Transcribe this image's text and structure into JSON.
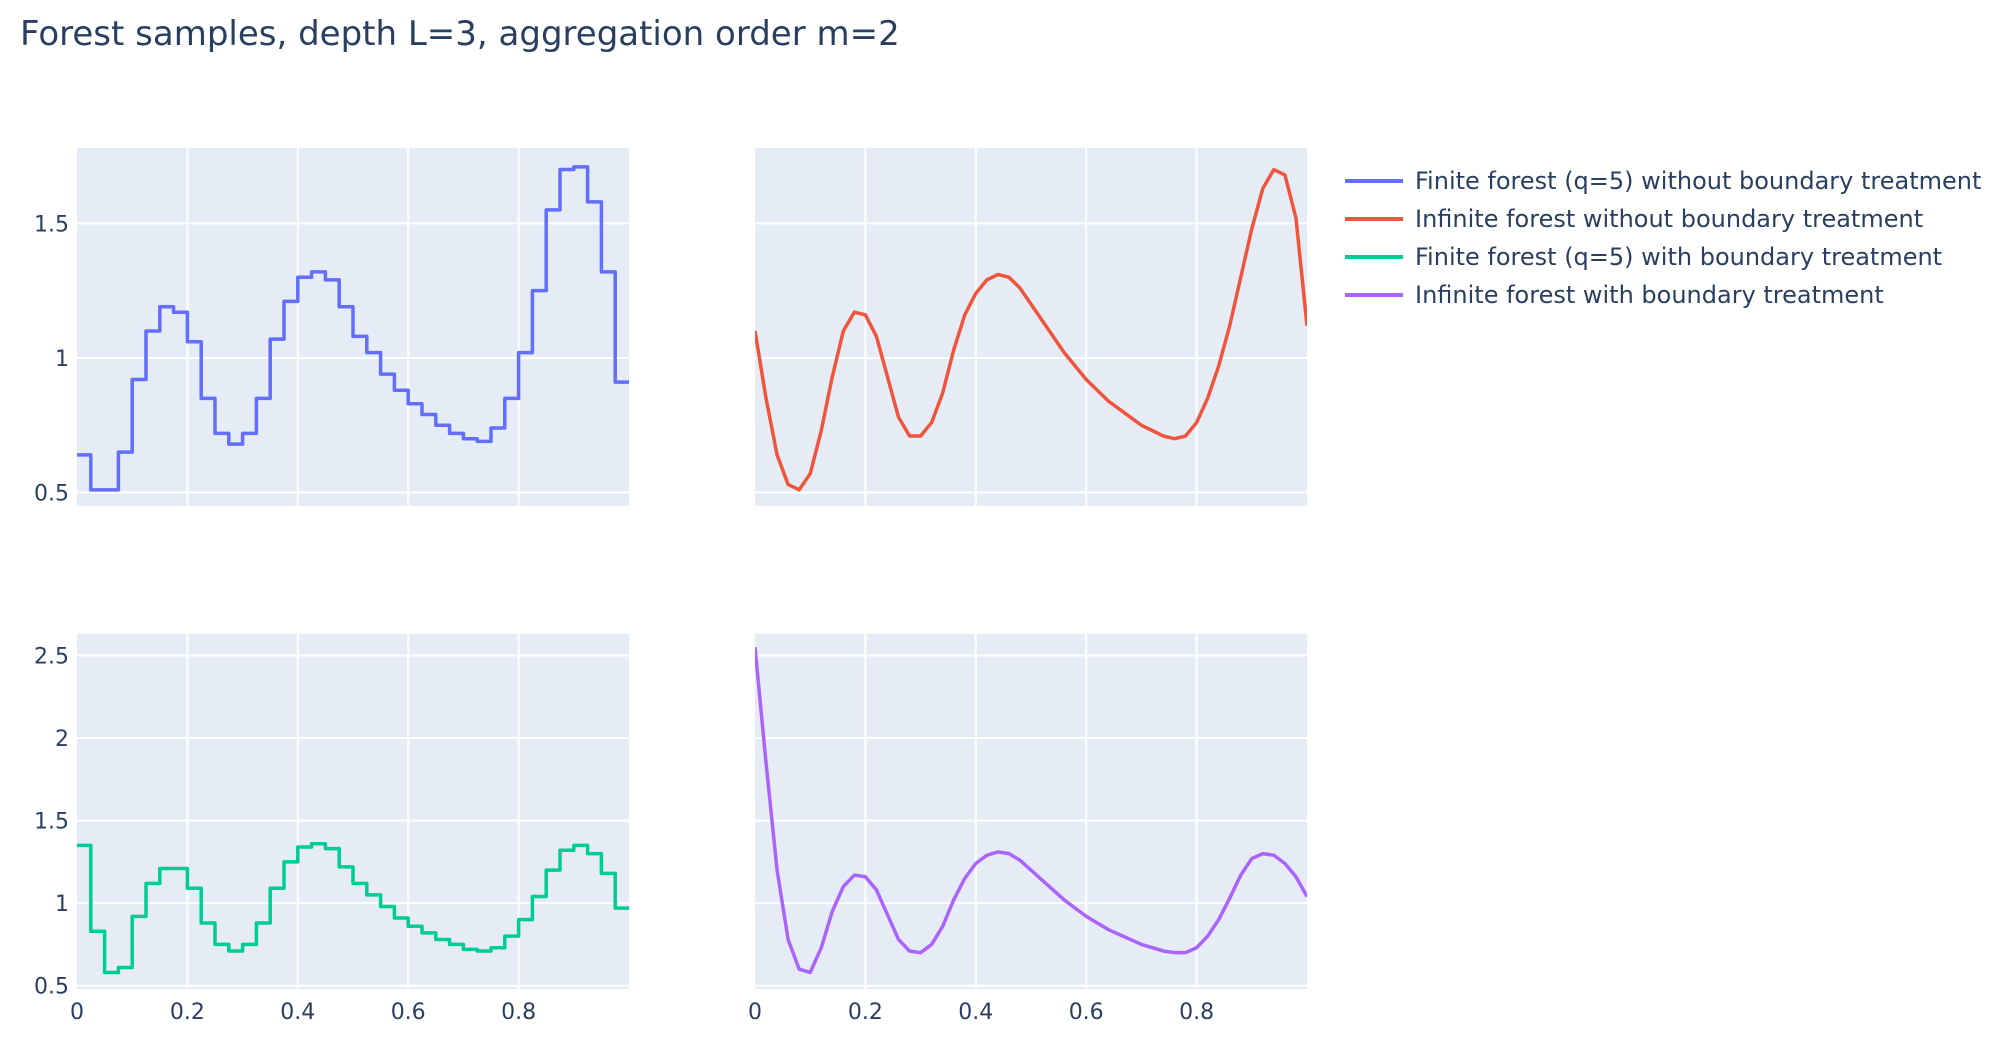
{
  "title": "Forest samples, depth L=3, aggregation order m=2",
  "colors": {
    "finite_no_bt": "#636efa",
    "infinite_no_bt": "#EF553B",
    "finite_bt": "#00cc96",
    "infinite_bt": "#ab63fa",
    "plot_bg": "#e5ecf6",
    "grid": "#ffffff",
    "text": "#2a3f5f"
  },
  "legend": [
    {
      "label": "Finite forest (q=5) without boundary treatment",
      "color": "#636efa"
    },
    {
      "label": "Infinite forest without boundary treatment",
      "color": "#EF553B"
    },
    {
      "label": "Finite forest (q=5) with boundary treatment",
      "color": "#00cc96"
    },
    {
      "label": "Infinite forest with boundary treatment",
      "color": "#ab63fa"
    }
  ],
  "chart_data": [
    {
      "type": "line",
      "shape": "step",
      "series": [
        {
          "name": "Finite forest (q=5) without boundary treatment",
          "color": "#636efa",
          "x": [
            0,
            0.025,
            0.05,
            0.075,
            0.1,
            0.125,
            0.15,
            0.175,
            0.2,
            0.225,
            0.25,
            0.275,
            0.3,
            0.325,
            0.35,
            0.375,
            0.4,
            0.425,
            0.45,
            0.475,
            0.5,
            0.525,
            0.55,
            0.575,
            0.6,
            0.625,
            0.65,
            0.675,
            0.7,
            0.725,
            0.75,
            0.775,
            0.8,
            0.825,
            0.85,
            0.875,
            0.9,
            0.925,
            0.95,
            0.975,
            1.0
          ],
          "y": [
            0.64,
            0.51,
            0.51,
            0.65,
            0.92,
            1.1,
            1.19,
            1.17,
            1.06,
            0.85,
            0.72,
            0.68,
            0.72,
            0.85,
            1.07,
            1.21,
            1.3,
            1.32,
            1.29,
            1.19,
            1.08,
            1.02,
            0.94,
            0.88,
            0.83,
            0.79,
            0.75,
            0.72,
            0.7,
            0.69,
            0.74,
            0.85,
            1.02,
            1.25,
            1.55,
            1.7,
            1.71,
            1.58,
            1.32,
            0.91,
            0.91
          ]
        }
      ],
      "xlim": [
        0,
        1
      ],
      "ylim": [
        0.45,
        1.78
      ],
      "xticks": [
        0.2,
        0.4,
        0.6,
        0.8
      ],
      "xtick_labels": [],
      "yticks": [
        0.5,
        1,
        1.5
      ],
      "ytick_labels": [
        "0.5",
        "1",
        "1.5"
      ],
      "grid": true
    },
    {
      "type": "line",
      "series": [
        {
          "name": "Infinite forest without boundary treatment",
          "color": "#EF553B",
          "x": [
            0,
            0.02,
            0.04,
            0.06,
            0.08,
            0.1,
            0.12,
            0.14,
            0.16,
            0.18,
            0.2,
            0.22,
            0.24,
            0.26,
            0.28,
            0.3,
            0.32,
            0.34,
            0.36,
            0.38,
            0.4,
            0.42,
            0.44,
            0.46,
            0.48,
            0.5,
            0.52,
            0.54,
            0.56,
            0.58,
            0.6,
            0.62,
            0.64,
            0.66,
            0.68,
            0.7,
            0.72,
            0.74,
            0.76,
            0.78,
            0.8,
            0.82,
            0.84,
            0.86,
            0.88,
            0.9,
            0.92,
            0.94,
            0.96,
            0.98,
            1.0
          ],
          "y": [
            1.1,
            0.85,
            0.64,
            0.53,
            0.51,
            0.57,
            0.73,
            0.93,
            1.1,
            1.17,
            1.16,
            1.08,
            0.93,
            0.78,
            0.71,
            0.71,
            0.76,
            0.87,
            1.03,
            1.16,
            1.24,
            1.29,
            1.31,
            1.3,
            1.26,
            1.2,
            1.14,
            1.08,
            1.02,
            0.97,
            0.92,
            0.88,
            0.84,
            0.81,
            0.78,
            0.75,
            0.73,
            0.71,
            0.7,
            0.71,
            0.76,
            0.85,
            0.97,
            1.12,
            1.3,
            1.48,
            1.63,
            1.7,
            1.68,
            1.52,
            1.12
          ]
        }
      ],
      "xlim": [
        0,
        1
      ],
      "ylim": [
        0.45,
        1.78
      ],
      "xticks": [
        0.2,
        0.4,
        0.6,
        0.8
      ],
      "xtick_labels": [],
      "yticks": [
        0.5,
        1,
        1.5
      ],
      "ytick_labels": [],
      "grid": true
    },
    {
      "type": "line",
      "shape": "step",
      "series": [
        {
          "name": "Finite forest (q=5) with boundary treatment",
          "color": "#00cc96",
          "x": [
            0,
            0.025,
            0.05,
            0.075,
            0.1,
            0.125,
            0.15,
            0.175,
            0.2,
            0.225,
            0.25,
            0.275,
            0.3,
            0.325,
            0.35,
            0.375,
            0.4,
            0.425,
            0.45,
            0.475,
            0.5,
            0.525,
            0.55,
            0.575,
            0.6,
            0.625,
            0.65,
            0.675,
            0.7,
            0.725,
            0.75,
            0.775,
            0.8,
            0.825,
            0.85,
            0.875,
            0.9,
            0.925,
            0.95,
            0.975,
            1.0
          ],
          "y": [
            1.35,
            0.83,
            0.58,
            0.61,
            0.92,
            1.12,
            1.21,
            1.21,
            1.09,
            0.88,
            0.75,
            0.71,
            0.75,
            0.88,
            1.09,
            1.25,
            1.34,
            1.36,
            1.33,
            1.22,
            1.12,
            1.05,
            0.98,
            0.91,
            0.86,
            0.82,
            0.78,
            0.75,
            0.72,
            0.71,
            0.73,
            0.8,
            0.9,
            1.04,
            1.2,
            1.32,
            1.35,
            1.3,
            1.18,
            0.97,
            0.97
          ]
        }
      ],
      "xlim": [
        0,
        1
      ],
      "ylim": [
        0.48,
        2.63
      ],
      "xticks": [
        0,
        0.2,
        0.4,
        0.6,
        0.8
      ],
      "xtick_labels": [
        "0",
        "0.2",
        "0.4",
        "0.6",
        "0.8"
      ],
      "yticks": [
        0.5,
        1,
        1.5,
        2,
        2.5
      ],
      "ytick_labels": [
        "0.5",
        "1",
        "1.5",
        "2",
        "2.5"
      ],
      "grid": true
    },
    {
      "type": "line",
      "series": [
        {
          "name": "Infinite forest with boundary treatment",
          "color": "#ab63fa",
          "x": [
            0,
            0.02,
            0.04,
            0.06,
            0.08,
            0.1,
            0.12,
            0.14,
            0.16,
            0.18,
            0.2,
            0.22,
            0.24,
            0.26,
            0.28,
            0.3,
            0.32,
            0.34,
            0.36,
            0.38,
            0.4,
            0.42,
            0.44,
            0.46,
            0.48,
            0.5,
            0.52,
            0.54,
            0.56,
            0.58,
            0.6,
            0.62,
            0.64,
            0.66,
            0.68,
            0.7,
            0.72,
            0.74,
            0.76,
            0.78,
            0.8,
            0.82,
            0.84,
            0.86,
            0.88,
            0.9,
            0.92,
            0.94,
            0.96,
            0.98,
            1.0
          ],
          "y": [
            2.55,
            1.85,
            1.2,
            0.78,
            0.6,
            0.58,
            0.73,
            0.95,
            1.1,
            1.17,
            1.16,
            1.08,
            0.93,
            0.78,
            0.71,
            0.7,
            0.75,
            0.86,
            1.02,
            1.15,
            1.24,
            1.29,
            1.31,
            1.3,
            1.26,
            1.2,
            1.14,
            1.08,
            1.02,
            0.97,
            0.92,
            0.88,
            0.84,
            0.81,
            0.78,
            0.75,
            0.73,
            0.71,
            0.7,
            0.7,
            0.73,
            0.8,
            0.9,
            1.03,
            1.17,
            1.27,
            1.3,
            1.29,
            1.24,
            1.16,
            1.04
          ]
        }
      ],
      "xlim": [
        0,
        1
      ],
      "ylim": [
        0.48,
        2.63
      ],
      "xticks": [
        0,
        0.2,
        0.4,
        0.6,
        0.8
      ],
      "xtick_labels": [
        "0",
        "0.2",
        "0.4",
        "0.6",
        "0.8"
      ],
      "yticks": [
        0.5,
        1,
        1.5,
        2,
        2.5
      ],
      "ytick_labels": [],
      "grid": true
    }
  ]
}
